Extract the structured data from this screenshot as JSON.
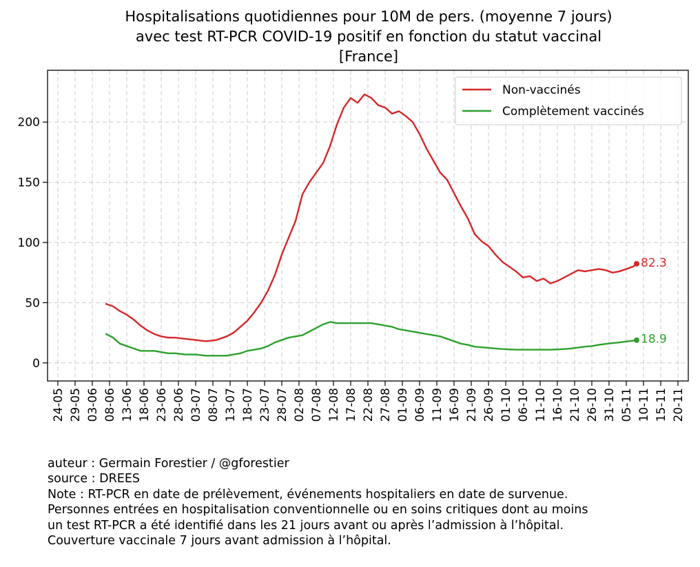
{
  "chart_data": {
    "type": "line",
    "title": [
      "Hospitalisations quotidiennes pour 10M de pers. (moyenne 7 jours)",
      "avec test RT-PCR COVID-19 positif en fonction du statut vaccinal",
      "[France]"
    ],
    "xlabel": "",
    "ylabel": "",
    "x_axis": {
      "type": "date",
      "range": [
        "2021-05-21",
        "2021-11-23"
      ]
    },
    "ylim": [
      -15,
      243
    ],
    "yticks": [
      0,
      50,
      100,
      150,
      200
    ],
    "xtick_labels": [
      "24-05",
      "29-05",
      "03-06",
      "08-06",
      "13-06",
      "18-06",
      "23-06",
      "28-06",
      "03-07",
      "08-07",
      "13-07",
      "18-07",
      "23-07",
      "28-07",
      "02-08",
      "07-08",
      "12-08",
      "17-08",
      "22-08",
      "27-08",
      "01-09",
      "06-09",
      "11-09",
      "16-09",
      "21-09",
      "26-09",
      "01-10",
      "06-10",
      "11-10",
      "16-10",
      "21-10",
      "26-10",
      "31-10",
      "05-11",
      "10-11",
      "15-11",
      "20-11"
    ],
    "xtick_dates": [
      "2021-05-24",
      "2021-05-29",
      "2021-06-03",
      "2021-06-08",
      "2021-06-13",
      "2021-06-18",
      "2021-06-23",
      "2021-06-28",
      "2021-07-03",
      "2021-07-08",
      "2021-07-13",
      "2021-07-18",
      "2021-07-23",
      "2021-07-28",
      "2021-08-02",
      "2021-08-07",
      "2021-08-12",
      "2021-08-17",
      "2021-08-22",
      "2021-08-27",
      "2021-09-01",
      "2021-09-06",
      "2021-09-11",
      "2021-09-16",
      "2021-09-21",
      "2021-09-26",
      "2021-10-01",
      "2021-10-06",
      "2021-10-11",
      "2021-10-16",
      "2021-10-21",
      "2021-10-26",
      "2021-10-31",
      "2021-11-05",
      "2021-11-10",
      "2021-11-15",
      "2021-11-20"
    ],
    "grid": true,
    "legend_position": "top-right",
    "series": [
      {
        "name": "Non-vaccinés",
        "color": "#d62728",
        "end_label": "82.3",
        "points": [
          [
            "2021-06-07",
            49
          ],
          [
            "2021-06-09",
            47
          ],
          [
            "2021-06-11",
            43
          ],
          [
            "2021-06-13",
            40
          ],
          [
            "2021-06-15",
            36
          ],
          [
            "2021-06-17",
            31
          ],
          [
            "2021-06-19",
            27
          ],
          [
            "2021-06-21",
            24
          ],
          [
            "2021-06-23",
            22
          ],
          [
            "2021-06-25",
            21
          ],
          [
            "2021-06-27",
            21
          ],
          [
            "2021-06-30",
            20
          ],
          [
            "2021-07-03",
            19
          ],
          [
            "2021-07-06",
            18
          ],
          [
            "2021-07-09",
            19
          ],
          [
            "2021-07-12",
            22
          ],
          [
            "2021-07-14",
            25
          ],
          [
            "2021-07-16",
            30
          ],
          [
            "2021-07-18",
            35
          ],
          [
            "2021-07-20",
            42
          ],
          [
            "2021-07-22",
            50
          ],
          [
            "2021-07-24",
            60
          ],
          [
            "2021-07-26",
            73
          ],
          [
            "2021-07-28",
            90
          ],
          [
            "2021-07-30",
            104
          ],
          [
            "2021-08-01",
            118
          ],
          [
            "2021-08-03",
            140
          ],
          [
            "2021-08-05",
            150
          ],
          [
            "2021-08-07",
            158
          ],
          [
            "2021-08-09",
            166
          ],
          [
            "2021-08-11",
            180
          ],
          [
            "2021-08-13",
            198
          ],
          [
            "2021-08-15",
            212
          ],
          [
            "2021-08-17",
            220
          ],
          [
            "2021-08-19",
            216
          ],
          [
            "2021-08-21",
            223
          ],
          [
            "2021-08-23",
            220
          ],
          [
            "2021-08-25",
            214
          ],
          [
            "2021-08-27",
            212
          ],
          [
            "2021-08-29",
            207
          ],
          [
            "2021-08-31",
            209
          ],
          [
            "2021-09-02",
            205
          ],
          [
            "2021-09-04",
            200
          ],
          [
            "2021-09-06",
            190
          ],
          [
            "2021-09-08",
            178
          ],
          [
            "2021-09-10",
            168
          ],
          [
            "2021-09-12",
            158
          ],
          [
            "2021-09-14",
            152
          ],
          [
            "2021-09-16",
            141
          ],
          [
            "2021-09-18",
            130
          ],
          [
            "2021-09-20",
            120
          ],
          [
            "2021-09-22",
            107
          ],
          [
            "2021-09-24",
            101
          ],
          [
            "2021-09-26",
            97
          ],
          [
            "2021-09-28",
            90
          ],
          [
            "2021-09-30",
            84
          ],
          [
            "2021-10-02",
            80
          ],
          [
            "2021-10-04",
            76
          ],
          [
            "2021-10-06",
            71
          ],
          [
            "2021-10-08",
            72
          ],
          [
            "2021-10-10",
            68
          ],
          [
            "2021-10-12",
            70
          ],
          [
            "2021-10-14",
            66
          ],
          [
            "2021-10-16",
            68
          ],
          [
            "2021-10-18",
            71
          ],
          [
            "2021-10-20",
            74
          ],
          [
            "2021-10-22",
            77
          ],
          [
            "2021-10-24",
            76
          ],
          [
            "2021-10-26",
            77
          ],
          [
            "2021-10-28",
            78
          ],
          [
            "2021-10-30",
            77
          ],
          [
            "2021-11-01",
            75
          ],
          [
            "2021-11-03",
            76
          ],
          [
            "2021-11-05",
            78
          ],
          [
            "2021-11-07",
            80
          ],
          [
            "2021-11-08",
            82.3
          ]
        ]
      },
      {
        "name": "Complètement vaccinés",
        "color": "#2ca02c",
        "end_label": "18.9",
        "points": [
          [
            "2021-06-07",
            24
          ],
          [
            "2021-06-09",
            21
          ],
          [
            "2021-06-11",
            16
          ],
          [
            "2021-06-13",
            14
          ],
          [
            "2021-06-15",
            12
          ],
          [
            "2021-06-17",
            10
          ],
          [
            "2021-06-19",
            10
          ],
          [
            "2021-06-21",
            10
          ],
          [
            "2021-06-23",
            9
          ],
          [
            "2021-06-25",
            8
          ],
          [
            "2021-06-27",
            8
          ],
          [
            "2021-06-30",
            7
          ],
          [
            "2021-07-03",
            7
          ],
          [
            "2021-07-06",
            6
          ],
          [
            "2021-07-09",
            6
          ],
          [
            "2021-07-12",
            6
          ],
          [
            "2021-07-14",
            7
          ],
          [
            "2021-07-16",
            8
          ],
          [
            "2021-07-18",
            10
          ],
          [
            "2021-07-20",
            11
          ],
          [
            "2021-07-22",
            12
          ],
          [
            "2021-07-24",
            14
          ],
          [
            "2021-07-26",
            17
          ],
          [
            "2021-07-28",
            19
          ],
          [
            "2021-07-30",
            21
          ],
          [
            "2021-08-01",
            22
          ],
          [
            "2021-08-03",
            23
          ],
          [
            "2021-08-05",
            26
          ],
          [
            "2021-08-07",
            29
          ],
          [
            "2021-08-09",
            32
          ],
          [
            "2021-08-11",
            34
          ],
          [
            "2021-08-13",
            33
          ],
          [
            "2021-08-15",
            33
          ],
          [
            "2021-08-17",
            33
          ],
          [
            "2021-08-19",
            33
          ],
          [
            "2021-08-21",
            33
          ],
          [
            "2021-08-23",
            33
          ],
          [
            "2021-08-25",
            32
          ],
          [
            "2021-08-27",
            31
          ],
          [
            "2021-08-29",
            30
          ],
          [
            "2021-08-31",
            28
          ],
          [
            "2021-09-02",
            27
          ],
          [
            "2021-09-04",
            26
          ],
          [
            "2021-09-06",
            25
          ],
          [
            "2021-09-08",
            24
          ],
          [
            "2021-09-10",
            23
          ],
          [
            "2021-09-12",
            22
          ],
          [
            "2021-09-14",
            20
          ],
          [
            "2021-09-16",
            18
          ],
          [
            "2021-09-18",
            16
          ],
          [
            "2021-09-20",
            15
          ],
          [
            "2021-09-22",
            13.5
          ],
          [
            "2021-09-24",
            13
          ],
          [
            "2021-09-26",
            12.5
          ],
          [
            "2021-09-28",
            12
          ],
          [
            "2021-09-30",
            11.5
          ],
          [
            "2021-10-02",
            11.2
          ],
          [
            "2021-10-04",
            11
          ],
          [
            "2021-10-06",
            11
          ],
          [
            "2021-10-08",
            11
          ],
          [
            "2021-10-10",
            11
          ],
          [
            "2021-10-12",
            11
          ],
          [
            "2021-10-14",
            11
          ],
          [
            "2021-10-16",
            11.2
          ],
          [
            "2021-10-18",
            11.5
          ],
          [
            "2021-10-20",
            12
          ],
          [
            "2021-10-22",
            12.8
          ],
          [
            "2021-10-24",
            13.5
          ],
          [
            "2021-10-26",
            14
          ],
          [
            "2021-10-28",
            15
          ],
          [
            "2021-10-30",
            15.8
          ],
          [
            "2021-11-01",
            16.5
          ],
          [
            "2021-11-03",
            17
          ],
          [
            "2021-11-05",
            17.8
          ],
          [
            "2021-11-07",
            18.5
          ],
          [
            "2021-11-08",
            18.9
          ]
        ]
      }
    ]
  },
  "notes": [
    "auteur : Germain Forestier / @gforestier",
    "source : DREES",
    "Note : RT-PCR en date de prélèvement, événements hospitaliers en date de survenue.",
    "Personnes entrées en hospitalisation conventionnelle ou en soins critiques dont au moins",
    "un test RT-PCR a été identifié dans les 21 jours avant ou après l’admission à l’hôpital.",
    "Couverture vaccinale 7 jours avant admission à l’hôpital."
  ]
}
